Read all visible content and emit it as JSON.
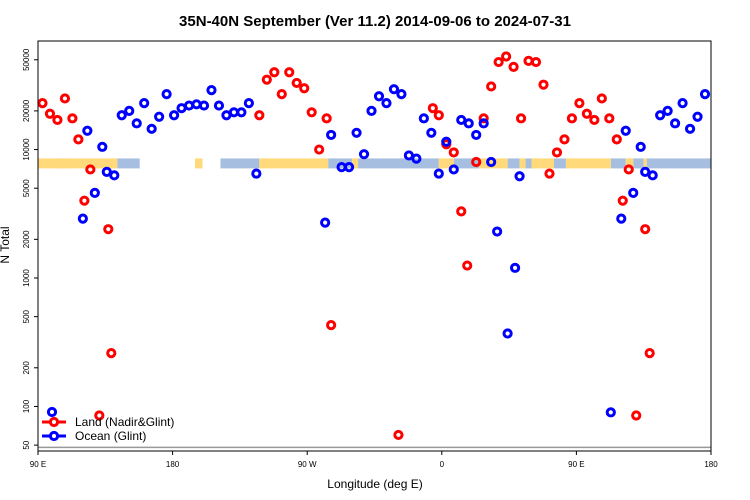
{
  "chart_data": {
    "type": "scatter",
    "title": "35N-40N September (Ver 11.2)   2014-09-06 to 2024-07-31",
    "xlabel": "Longitude (deg E)",
    "ylabel": "N Total",
    "x_ticks": [
      {
        "value": 90,
        "label": "90 E"
      },
      {
        "value": 180,
        "label": "180"
      },
      {
        "value": 270,
        "label": "90 W"
      },
      {
        "value": 360,
        "label": "0"
      },
      {
        "value": 450,
        "label": "90 E"
      },
      {
        "value": 540,
        "label": "180"
      }
    ],
    "xlim": [
      90,
      540
    ],
    "y_scale": "log",
    "ylim": [
      45,
      70000
    ],
    "y_ticks": [
      {
        "value": 50,
        "label": "50"
      },
      {
        "value": 100,
        "label": "100"
      },
      {
        "value": 200,
        "label": "200"
      },
      {
        "value": 500,
        "label": "500"
      },
      {
        "value": 1000,
        "label": "1000"
      },
      {
        "value": 2000,
        "label": "2000"
      },
      {
        "value": 5000,
        "label": "5000"
      },
      {
        "value": 10000,
        "label": "10000"
      },
      {
        "value": 20000,
        "label": "20000"
      },
      {
        "value": 50000,
        "label": "50000"
      }
    ],
    "baseline_value": 48,
    "legend": {
      "position": "bottom-left"
    },
    "land_mask": {
      "y_value": 7800,
      "land_color": "#ffd97a",
      "ocean_color": "#a6bfe0",
      "land_ranges": [
        [
          90,
          143
        ],
        [
          104,
          109
        ],
        [
          195,
          200
        ],
        [
          238,
          284
        ],
        [
          300,
          304
        ],
        [
          358,
          368
        ],
        [
          385,
          404
        ],
        [
          412,
          416
        ],
        [
          420,
          435
        ],
        [
          443,
          473
        ],
        [
          483,
          488
        ],
        [
          495,
          497
        ]
      ],
      "ocean_ranges": [
        [
          143,
          158
        ],
        [
          212,
          238
        ],
        [
          284,
          300
        ],
        [
          304,
          358
        ],
        [
          368,
          385
        ],
        [
          404,
          412
        ],
        [
          416,
          420
        ],
        [
          435,
          443
        ],
        [
          473,
          483
        ],
        [
          488,
          495
        ],
        [
          497,
          540
        ]
      ]
    },
    "series": [
      {
        "name": "Land (Nadir&Glint)",
        "color": "#ff0000",
        "points": [
          [
            93,
            23000
          ],
          [
            98,
            19000
          ],
          [
            103,
            17000
          ],
          [
            108,
            25000
          ],
          [
            113,
            17500
          ],
          [
            117,
            12000
          ],
          [
            121,
            4000
          ],
          [
            125,
            7000
          ],
          [
            131,
            85
          ],
          [
            137,
            2400
          ],
          [
            139,
            260
          ],
          [
            238,
            18500
          ],
          [
            243,
            35000
          ],
          [
            248,
            40000
          ],
          [
            253,
            27000
          ],
          [
            258,
            40000
          ],
          [
            263,
            33000
          ],
          [
            268,
            30000
          ],
          [
            273,
            19500
          ],
          [
            278,
            10000
          ],
          [
            283,
            17500
          ],
          [
            286,
            430
          ],
          [
            331,
            60
          ],
          [
            354,
            21000
          ],
          [
            358,
            18500
          ],
          [
            363,
            11000
          ],
          [
            368,
            9500
          ],
          [
            373,
            3300
          ],
          [
            377,
            1250
          ],
          [
            383,
            8000
          ],
          [
            388,
            17500
          ],
          [
            393,
            31000
          ],
          [
            398,
            48000
          ],
          [
            403,
            53000
          ],
          [
            408,
            44000
          ],
          [
            413,
            17500
          ],
          [
            418,
            49000
          ],
          [
            423,
            48000
          ],
          [
            428,
            32000
          ],
          [
            432,
            6500
          ],
          [
            437,
            9500
          ],
          [
            442,
            12000
          ],
          [
            447,
            17500
          ],
          [
            452,
            23000
          ],
          [
            457,
            19000
          ],
          [
            462,
            17000
          ],
          [
            467,
            25000
          ],
          [
            472,
            17500
          ],
          [
            477,
            12000
          ],
          [
            481,
            4000
          ],
          [
            485,
            7000
          ],
          [
            490,
            85
          ],
          [
            496,
            2400
          ],
          [
            499,
            260
          ]
        ]
      },
      {
        "name": "Ocean (Glint)",
        "color": "#0000ff",
        "points": [
          [
            120,
            2900
          ],
          [
            123,
            14000
          ],
          [
            128,
            4600
          ],
          [
            133,
            10500
          ],
          [
            136,
            6700
          ],
          [
            141,
            6300
          ],
          [
            146,
            18500
          ],
          [
            151,
            20000
          ],
          [
            156,
            16000
          ],
          [
            161,
            23000
          ],
          [
            166,
            14500
          ],
          [
            171,
            18000
          ],
          [
            176,
            27000
          ],
          [
            181,
            18500
          ],
          [
            186,
            21000
          ],
          [
            191,
            22000
          ],
          [
            196,
            22500
          ],
          [
            201,
            22000
          ],
          [
            206,
            29000
          ],
          [
            211,
            22000
          ],
          [
            216,
            18500
          ],
          [
            221,
            19500
          ],
          [
            226,
            19500
          ],
          [
            231,
            23000
          ],
          [
            236,
            6500
          ],
          [
            282,
            2700
          ],
          [
            286,
            13000
          ],
          [
            293,
            7300
          ],
          [
            298,
            7300
          ],
          [
            303,
            13500
          ],
          [
            308,
            9200
          ],
          [
            313,
            20000
          ],
          [
            318,
            26000
          ],
          [
            323,
            23000
          ],
          [
            328,
            29500
          ],
          [
            333,
            27000
          ],
          [
            338,
            9000
          ],
          [
            343,
            8500
          ],
          [
            348,
            17500
          ],
          [
            353,
            13500
          ],
          [
            358,
            6500
          ],
          [
            363,
            11500
          ],
          [
            368,
            7000
          ],
          [
            373,
            17000
          ],
          [
            378,
            16000
          ],
          [
            383,
            13000
          ],
          [
            388,
            16000
          ],
          [
            393,
            8000
          ],
          [
            397,
            2300
          ],
          [
            404,
            370
          ],
          [
            409,
            1200
          ],
          [
            412,
            6200
          ],
          [
            473,
            90
          ],
          [
            480,
            2900
          ],
          [
            483,
            14000
          ],
          [
            488,
            4600
          ],
          [
            493,
            10500
          ],
          [
            496,
            6700
          ],
          [
            501,
            6300
          ],
          [
            506,
            18500
          ],
          [
            511,
            20000
          ],
          [
            516,
            16000
          ],
          [
            521,
            23000
          ],
          [
            526,
            14500
          ],
          [
            531,
            18000
          ],
          [
            536,
            27000
          ]
        ]
      }
    ]
  }
}
